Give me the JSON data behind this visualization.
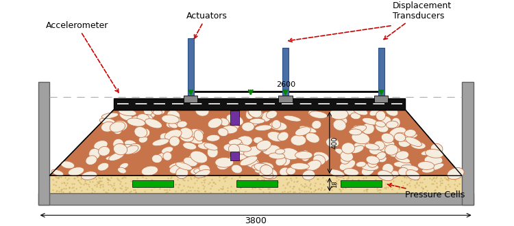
{
  "fig_width": 7.5,
  "fig_height": 3.31,
  "dpi": 100,
  "bg_color": "#ffffff",
  "labels": {
    "accelerometer": "Accelerometer",
    "actuators": "Actuators",
    "displacement": "Displacement\nTransducers",
    "pressure_cells": "Pressure Cells",
    "dim_2600": "2600",
    "dim_3800": "3800",
    "dim_400": "400",
    "dim_18": "18"
  },
  "colors": {
    "wall_gray": "#a0a0a0",
    "wall_dark": "#606060",
    "gravel_bg": "#c8744a",
    "gravel_oval_fill": "#f5ede0",
    "gravel_oval_edge": "#c8744a",
    "sand_bg": "#f0dba0",
    "black_layer": "#111111",
    "actuator_blue": "#4a6fa5",
    "actuator_dark": "#2a4f85",
    "green_arrow": "#008800",
    "purple_sensor": "#7030a0",
    "green_sensor": "#00aa00",
    "red_dashed": "#cc0000",
    "dim_line": "#000000",
    "base_plate": "#888888"
  }
}
